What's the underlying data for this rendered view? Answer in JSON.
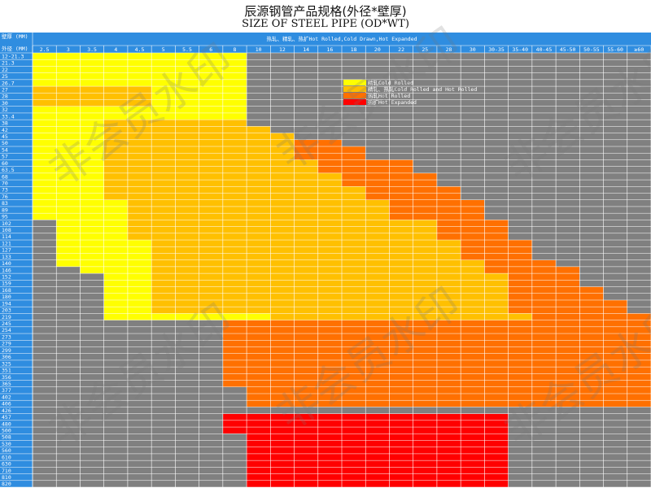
{
  "title_cn": "辰源钢管产品规格(外径*壁厚)",
  "title_en": "SIZE OF STEEL PIPE (OD*WT)",
  "watermark": "非会员水印",
  "colors": {
    "header": "#2f8de0",
    "grid_line": "#ffffff",
    "none": "#808080",
    "cold_rolled": "#ffff00",
    "all": "#ffc000",
    "hot_rolled": "#ff7000",
    "hot_expanded": "#ff0000"
  },
  "chart_data": {
    "type": "heatmap",
    "title": "辰源钢管产品规格(外径*壁厚)",
    "subtitle": "SIZE OF STEEL PIPE (OD*WT)",
    "corner_top": "壁厚 (MM)",
    "corner_bottom": "外径 (MM)",
    "top_banner": "热轧、精轧、热扩Hot Rolled,Cold Drawn,Hot Expanded",
    "xlabel": "壁厚 (MM)",
    "ylabel": "外径 (MM)",
    "wall_thickness": [
      "2.5",
      "3",
      "3.5",
      "4",
      "4.5",
      "5",
      "5.5",
      "6",
      "8",
      "10",
      "12",
      "14",
      "16",
      "18",
      "20",
      "22",
      "25",
      "28",
      "30",
      "30-35",
      "35-40",
      "40-45",
      "45-50",
      "50-55",
      "55-60",
      "≥60"
    ],
    "outer_diameter": [
      "12-21.3",
      "21.3",
      "22",
      "25",
      "26.7",
      "27",
      "28",
      "30",
      "32",
      "33.4",
      "38",
      "42",
      "45",
      "50",
      "54",
      "57",
      "60",
      "63.5",
      "68",
      "70",
      "73",
      "76",
      "83",
      "89",
      "95",
      "102",
      "108",
      "114",
      "121",
      "127",
      "133",
      "140",
      "146",
      "152",
      "159",
      "168",
      "180",
      "194",
      "203",
      "219",
      "245",
      "254",
      "273",
      "279",
      "299",
      "306",
      "325",
      "351",
      "356",
      "365",
      "377",
      "402",
      "406",
      "426",
      "457",
      "480",
      "500",
      "508",
      "530",
      "560",
      "610",
      "630",
      "710",
      "810",
      "820"
    ],
    "legend": [
      {
        "code": "Y",
        "label": "精轧Cold Rolled"
      },
      {
        "code": "O",
        "label": "精轧、热轧Cold Rolled and Hot Rolled"
      },
      {
        "code": "D",
        "label": "热轧Hot Rolled"
      },
      {
        "code": "R",
        "label": "热扩Hot Expanded"
      }
    ],
    "legend_placement": "upper-middle",
    "category_codes": {
      "G": "none",
      "Y": "精轧Cold Rolled",
      "O": "精轧、热轧Cold Rolled and Hot Rolled",
      "D": "热轧Hot Rolled",
      "R": "热扩Hot Expanded"
    },
    "rows": [
      "YYYYYYYYYGGGGGGGGGGGGGGGGG",
      "YYYYYYYYYGGGGGGGGGGGGGGGGG",
      "YYYYYYYYYGGGGGGGGGGGGGGGGG",
      "YYYYYYYYYGGGGGGGGGGGGGGGGG",
      "YYYYYYYYYGGGGGGGGGGGGGGGGG",
      "OOOOOYYYYGGGGGGGGGGGGGGGGG",
      "OOOOOYYYYGGGGGGGGGGGGGGGGG",
      "OOOOOYYYYGGGGGGGGGGGGGGGGG",
      "YYYYYYYYYGGGGGGGGGGGGGGGGG",
      "YYYYYYYYYGGGGGGGGGGGGGGGGG",
      "YYYOOOOOOGGGGGGGGGGGGGGGGG",
      "YYYOOOOOOOGGGGGGGGGGGGGGGG",
      "YYYOOOOOOOOGGGGGGGGGGGGGGG",
      "YYYOOOOOOOODDGGGGGGGGGGGGG",
      "YYYOOOOOOOODDDGGGGGGGGGGGG",
      "YYYOOOOOOOODDDGGGGGGGGGGGG",
      "YYYOOOOOOOOODDDDGGGGGGGGGG",
      "YYYOOOOOOOOODDDDGGGGGGGGGG",
      "YYYOOOOOOOOOODDDDGGGGGGGGG",
      "YYYOOOOOOOOOODDDDGGGGGGGGG",
      "YYYOOOOOOOOOOODDDDGGGGGGGG",
      "YYYOOOOOOOOOOODDDDGGGGGGGG",
      "YYYYOOOOOOOOOOODDDDGGGGGGG",
      "YYYYOOOOOOOOOOODDDDGGGGGGG",
      "YYYYOOOOOOOOOOODDDDGGGGGGG",
      "GYYYOOOOOOOOOOOOODDDGGGGGG",
      "GYYYOOOOOOOOOOOOODDDGGGGGG",
      "GYYYOOOOOOOOOOOOODDDGGGGGG",
      "GYYYYOOOOOOOOOOOOODDDGGGGG",
      "GYYYYOOOOOOOOOOOOODDDGGGGG",
      "GYYYYOOOOOOOOOOOOODDDGGGGG",
      "GYYYYOOOOOOOOOOOOOODDDGGGG",
      "GGYYYOOOOOOOOOOOOOODDDDGGG",
      "GGGYYOOOOOOOOOOOOOOODDDGGG",
      "GGGYYOOOOOOOOOOOOOOODDDGGG",
      "GGGYYOOOOOOOOOOOOOOODDDDGG",
      "GGGYYOOOOOOOOOOOOOOODDDDGG",
      "GGGYYOOOOOOOOOOOOOOODDDDDG",
      "GGGYYOOOOOOOOOOOOOOODDDDDG",
      "GGGYYYYYYYOOOOOOOOOOODDDDD",
      "GGGGGGGGDDDDDDDDDDDDDDDDDD",
      "GGGGGGGGDDDDDDDDDDDDDDDDDD",
      "GGGGGGGGDDDDDDDDDDDDDDDDDD",
      "GGGGGGGGDDDDDDDDDDDDDDDDDD",
      "GGGGGGGGDDDDDDDDDDDDDDDDDD",
      "GGGGGGGGDDDDDDDDDDDDDDDDDD",
      "GGGGGGGGDDDDDDDDDDDDDDDDDD",
      "GGGGGGGGDDDDDDDDDDDDDDDDDD",
      "GGGGGGGGDDDDDDDDDDDDDDDDDD",
      "GGGGGGGGDDDDDDDDDDDDDDDDDD",
      "GGGGGGGGGDDDDDDDDDDDDDDDDD",
      "GGGGGGGGGDDDDDDDDDDDDDDDDD",
      "GGGGGGGGGDDDDDDDDDDDDDDDDD",
      "GGGGGGGGGGGGGGGGGGGGGGGGGG",
      "GGGGGGGGRRRRRRRRRRRRGGGGGG",
      "GGGGGGGGRRRRRRRRRRRRGGGGGG",
      "GGGGGGGGRRRRRRRRRRRRGGGGGG",
      "GGGGGGGGGRRRRRRRRRRRGGGGGG",
      "GGGGGGGGGRRRRRRRRRRRGGGGGG",
      "GGGGGGGGGRRRRRRRRRRRGGGGGG",
      "GGGGGGGGGRRRRRRRRRRRGGGGGG",
      "GGGGGGGGGRRRRRRRRRRRGGGGGG",
      "GGGGGGGGGRRRRRRRRRRRGGGGGG",
      "GGGGGGGGGRRRRRRRRRRRGGGGGG",
      "GGGGGGGGGRRRRRRRRRRRGGGGGG"
    ]
  }
}
